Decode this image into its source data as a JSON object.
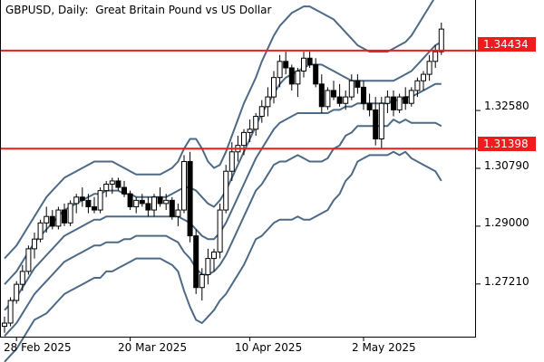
{
  "chart_data": {
    "type": "candlestick",
    "title": "GBPUSD, Daily:  Great Britain Pound vs US Dollar",
    "symbol": "GBPUSD",
    "timeframe": "Daily",
    "instrument_name": "Great Britain Pound vs US Dollar",
    "ylim": [
      1.2558,
      1.36
    ],
    "yticks": [
      "1.32580",
      "1.30790",
      "1.29000",
      "1.27210"
    ],
    "xticks": [
      "28 Feb 2025",
      "20 Mar 2025",
      "10 Apr 2025",
      "2 May 2025"
    ],
    "horizontal_levels": [
      {
        "value": 1.34434,
        "label": "1.34434",
        "color": "#ee1c1c"
      },
      {
        "value": 1.31398,
        "label": "1.31398",
        "color": "#ee1c1c"
      }
    ],
    "candles": [
      [
        1.259,
        1.262,
        1.257,
        1.26
      ],
      [
        1.26,
        1.268,
        1.259,
        1.267
      ],
      [
        1.267,
        1.273,
        1.266,
        1.272
      ],
      [
        1.272,
        1.278,
        1.27,
        1.276
      ],
      [
        1.276,
        1.284,
        1.275,
        1.283
      ],
      [
        1.283,
        1.288,
        1.28,
        1.286
      ],
      [
        1.286,
        1.292,
        1.285,
        1.291
      ],
      [
        1.291,
        1.296,
        1.288,
        1.293
      ],
      [
        1.293,
        1.295,
        1.289,
        1.29
      ],
      [
        1.29,
        1.296,
        1.289,
        1.295
      ],
      [
        1.295,
        1.297,
        1.29,
        1.291
      ],
      [
        1.291,
        1.298,
        1.29,
        1.297
      ],
      [
        1.297,
        1.3,
        1.294,
        1.299
      ],
      [
        1.299,
        1.302,
        1.296,
        1.298
      ],
      [
        1.298,
        1.3,
        1.294,
        1.296
      ],
      [
        1.296,
        1.299,
        1.294,
        1.295
      ],
      [
        1.295,
        1.302,
        1.294,
        1.301
      ],
      [
        1.301,
        1.304,
        1.299,
        1.303
      ],
      [
        1.303,
        1.305,
        1.3,
        1.304
      ],
      [
        1.304,
        1.305,
        1.301,
        1.302
      ],
      [
        1.302,
        1.304,
        1.299,
        1.3
      ],
      [
        1.3,
        1.301,
        1.295,
        1.296
      ],
      [
        1.296,
        1.299,
        1.294,
        1.298
      ],
      [
        1.298,
        1.3,
        1.296,
        1.297
      ],
      [
        1.297,
        1.299,
        1.293,
        1.295
      ],
      [
        1.295,
        1.3,
        1.293,
        1.299
      ],
      [
        1.299,
        1.302,
        1.296,
        1.297
      ],
      [
        1.297,
        1.3,
        1.295,
        1.298
      ],
      [
        1.298,
        1.299,
        1.292,
        1.293
      ],
      [
        1.293,
        1.297,
        1.29,
        1.295
      ],
      [
        1.295,
        1.312,
        1.294,
        1.31
      ],
      [
        1.31,
        1.313,
        1.285,
        1.287
      ],
      [
        1.287,
        1.289,
        1.269,
        1.271
      ],
      [
        1.271,
        1.277,
        1.267,
        1.275
      ],
      [
        1.275,
        1.283,
        1.272,
        1.28
      ],
      [
        1.28,
        1.283,
        1.276,
        1.282
      ],
      [
        1.282,
        1.297,
        1.28,
        1.295
      ],
      [
        1.295,
        1.309,
        1.294,
        1.307
      ],
      [
        1.307,
        1.316,
        1.304,
        1.313
      ],
      [
        1.313,
        1.318,
        1.31,
        1.315
      ],
      [
        1.315,
        1.32,
        1.312,
        1.319
      ],
      [
        1.319,
        1.323,
        1.316,
        1.32
      ],
      [
        1.32,
        1.325,
        1.318,
        1.324
      ],
      [
        1.324,
        1.329,
        1.322,
        1.327
      ],
      [
        1.327,
        1.333,
        1.324,
        1.33
      ],
      [
        1.33,
        1.338,
        1.328,
        1.336
      ],
      [
        1.336,
        1.343,
        1.333,
        1.341
      ],
      [
        1.341,
        1.344,
        1.337,
        1.339
      ],
      [
        1.339,
        1.34,
        1.332,
        1.334
      ],
      [
        1.334,
        1.339,
        1.33,
        1.338
      ],
      [
        1.338,
        1.344,
        1.336,
        1.342
      ],
      [
        1.342,
        1.344,
        1.339,
        1.34
      ],
      [
        1.34,
        1.342,
        1.333,
        1.334
      ],
      [
        1.334,
        1.337,
        1.325,
        1.327
      ],
      [
        1.327,
        1.333,
        1.326,
        1.332
      ],
      [
        1.332,
        1.335,
        1.329,
        1.33
      ],
      [
        1.33,
        1.334,
        1.327,
        1.328
      ],
      [
        1.328,
        1.332,
        1.326,
        1.33
      ],
      [
        1.33,
        1.337,
        1.329,
        1.335
      ],
      [
        1.335,
        1.337,
        1.331,
        1.333
      ],
      [
        1.333,
        1.335,
        1.326,
        1.328
      ],
      [
        1.328,
        1.331,
        1.324,
        1.326
      ],
      [
        1.326,
        1.33,
        1.315,
        1.317
      ],
      [
        1.317,
        1.33,
        1.314,
        1.328
      ],
      [
        1.328,
        1.332,
        1.325,
        1.33
      ],
      [
        1.33,
        1.332,
        1.324,
        1.326
      ],
      [
        1.326,
        1.331,
        1.325,
        1.33
      ],
      [
        1.33,
        1.333,
        1.326,
        1.328
      ],
      [
        1.328,
        1.333,
        1.327,
        1.332
      ],
      [
        1.332,
        1.336,
        1.33,
        1.335
      ],
      [
        1.335,
        1.338,
        1.332,
        1.337
      ],
      [
        1.337,
        1.343,
        1.335,
        1.341
      ],
      [
        1.341,
        1.346,
        1.339,
        1.344
      ],
      [
        1.344,
        1.353,
        1.343,
        1.351
      ]
    ],
    "bands": {
      "upper2": [
        1.28,
        1.282,
        1.284,
        1.287,
        1.29,
        1.293,
        1.296,
        1.299,
        1.301,
        1.303,
        1.305,
        1.306,
        1.307,
        1.308,
        1.309,
        1.31,
        1.31,
        1.31,
        1.31,
        1.309,
        1.308,
        1.307,
        1.306,
        1.306,
        1.306,
        1.306,
        1.306,
        1.307,
        1.308,
        1.31,
        1.314,
        1.317,
        1.317,
        1.314,
        1.31,
        1.308,
        1.309,
        1.313,
        1.318,
        1.323,
        1.328,
        1.332,
        1.336,
        1.341,
        1.345,
        1.349,
        1.352,
        1.354,
        1.356,
        1.357,
        1.358,
        1.358,
        1.357,
        1.356,
        1.355,
        1.354,
        1.352,
        1.35,
        1.348,
        1.346,
        1.345,
        1.344,
        1.344,
        1.344,
        1.344,
        1.345,
        1.346,
        1.347,
        1.349,
        1.352,
        1.355,
        1.358,
        1.361,
        1.364
      ],
      "upper1": [
        1.272,
        1.274,
        1.276,
        1.279,
        1.282,
        1.285,
        1.287,
        1.289,
        1.291,
        1.293,
        1.295,
        1.296,
        1.297,
        1.298,
        1.299,
        1.3,
        1.3,
        1.301,
        1.301,
        1.301,
        1.3,
        1.3,
        1.299,
        1.299,
        1.299,
        1.299,
        1.299,
        1.299,
        1.3,
        1.301,
        1.302,
        1.302,
        1.301,
        1.299,
        1.297,
        1.296,
        1.298,
        1.301,
        1.305,
        1.309,
        1.313,
        1.317,
        1.321,
        1.325,
        1.328,
        1.331,
        1.334,
        1.336,
        1.337,
        1.338,
        1.339,
        1.34,
        1.34,
        1.34,
        1.339,
        1.338,
        1.337,
        1.336,
        1.335,
        1.335,
        1.335,
        1.335,
        1.335,
        1.335,
        1.335,
        1.335,
        1.336,
        1.337,
        1.338,
        1.34,
        1.342,
        1.344,
        1.346,
        1.347
      ],
      "middle": [
        1.264,
        1.266,
        1.268,
        1.271,
        1.274,
        1.277,
        1.279,
        1.281,
        1.283,
        1.285,
        1.287,
        1.288,
        1.289,
        1.29,
        1.291,
        1.292,
        1.292,
        1.293,
        1.293,
        1.293,
        1.293,
        1.293,
        1.293,
        1.293,
        1.293,
        1.293,
        1.293,
        1.293,
        1.293,
        1.293,
        1.292,
        1.291,
        1.289,
        1.287,
        1.286,
        1.286,
        1.288,
        1.291,
        1.295,
        1.299,
        1.303,
        1.307,
        1.311,
        1.314,
        1.317,
        1.32,
        1.322,
        1.323,
        1.324,
        1.325,
        1.325,
        1.325,
        1.325,
        1.325,
        1.325,
        1.326,
        1.326,
        1.327,
        1.327,
        1.328,
        1.328,
        1.328,
        1.328,
        1.328,
        1.328,
        1.329,
        1.329,
        1.33,
        1.33,
        1.331,
        1.332,
        1.333,
        1.334,
        1.334
      ],
      "lower1": [
        1.256,
        1.258,
        1.26,
        1.263,
        1.266,
        1.269,
        1.271,
        1.273,
        1.275,
        1.277,
        1.279,
        1.28,
        1.281,
        1.282,
        1.283,
        1.284,
        1.284,
        1.285,
        1.285,
        1.285,
        1.286,
        1.286,
        1.287,
        1.287,
        1.287,
        1.287,
        1.287,
        1.287,
        1.286,
        1.285,
        1.282,
        1.28,
        1.277,
        1.275,
        1.275,
        1.276,
        1.278,
        1.281,
        1.285,
        1.289,
        1.293,
        1.297,
        1.301,
        1.303,
        1.306,
        1.309,
        1.31,
        1.31,
        1.311,
        1.312,
        1.311,
        1.31,
        1.31,
        1.31,
        1.311,
        1.314,
        1.315,
        1.318,
        1.319,
        1.321,
        1.321,
        1.321,
        1.321,
        1.321,
        1.321,
        1.323,
        1.322,
        1.323,
        1.322,
        1.322,
        1.322,
        1.322,
        1.322,
        1.321
      ],
      "lower2": [
        1.248,
        1.25,
        1.252,
        1.255,
        1.258,
        1.261,
        1.262,
        1.263,
        1.265,
        1.267,
        1.269,
        1.27,
        1.271,
        1.272,
        1.273,
        1.274,
        1.274,
        1.276,
        1.276,
        1.277,
        1.278,
        1.279,
        1.28,
        1.28,
        1.28,
        1.28,
        1.28,
        1.279,
        1.278,
        1.276,
        1.27,
        1.265,
        1.261,
        1.26,
        1.262,
        1.264,
        1.267,
        1.269,
        1.272,
        1.275,
        1.278,
        1.282,
        1.286,
        1.287,
        1.289,
        1.291,
        1.292,
        1.292,
        1.292,
        1.293,
        1.292,
        1.292,
        1.293,
        1.294,
        1.295,
        1.298,
        1.3,
        1.304,
        1.306,
        1.31,
        1.311,
        1.312,
        1.312,
        1.312,
        1.312,
        1.313,
        1.312,
        1.313,
        1.311,
        1.31,
        1.309,
        1.308,
        1.307,
        1.304
      ]
    }
  }
}
